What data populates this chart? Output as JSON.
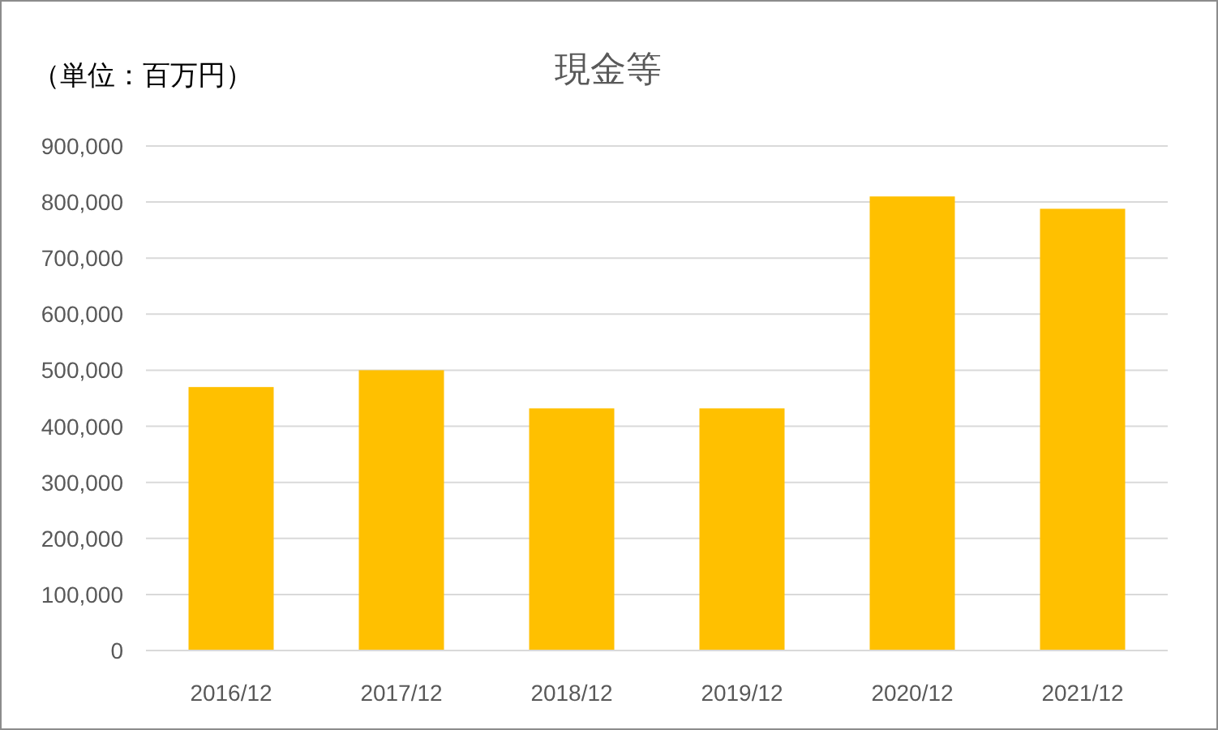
{
  "chart_data": {
    "type": "bar",
    "title": "現金等",
    "annotations": [
      "（単位：百万円）"
    ],
    "categories": [
      "2016/12",
      "2017/12",
      "2018/12",
      "2019/12",
      "2020/12",
      "2021/12"
    ],
    "values": [
      470000,
      500000,
      432000,
      432000,
      810000,
      788000
    ],
    "color": "#ffc000",
    "ylim": [
      0,
      900000
    ],
    "yticks": [
      {
        "value": 0,
        "label": "0"
      },
      {
        "value": 100000,
        "label": "100,000"
      },
      {
        "value": 200000,
        "label": "200,000"
      },
      {
        "value": 300000,
        "label": "300,000"
      },
      {
        "value": 400000,
        "label": "400,000"
      },
      {
        "value": 500000,
        "label": "500,000"
      },
      {
        "value": 600000,
        "label": "600,000"
      },
      {
        "value": 700000,
        "label": "700,000"
      },
      {
        "value": 800000,
        "label": "800,000"
      },
      {
        "value": 900000,
        "label": "900,000"
      }
    ],
    "grid": "y"
  }
}
